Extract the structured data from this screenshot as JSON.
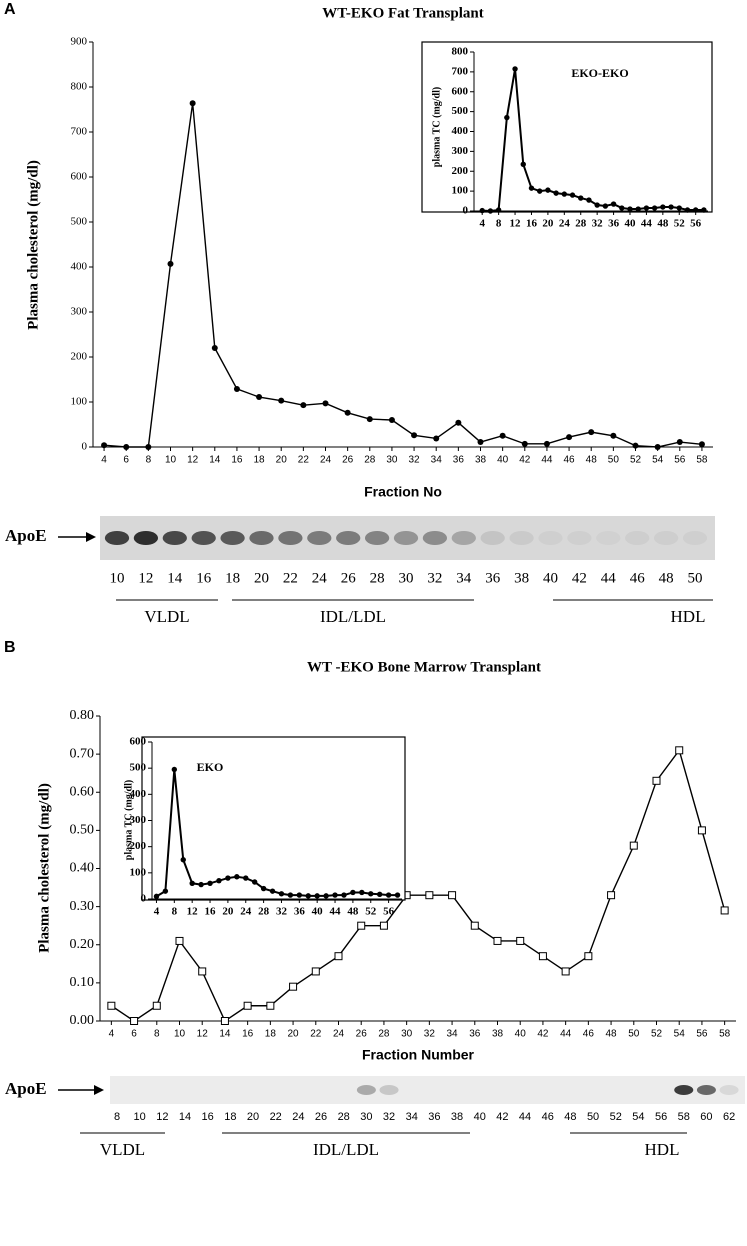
{
  "panel_labels": [
    "A",
    "B"
  ],
  "chart_data": [
    {
      "type": "line",
      "title": "WT-EKO Fat Transplant",
      "x_label": "Fraction No",
      "y_label": "Plasma cholesterol (mg/dl)",
      "marker": "circle",
      "color": "#000000",
      "x": [
        4,
        6,
        8,
        10,
        12,
        14,
        16,
        18,
        20,
        22,
        24,
        26,
        28,
        30,
        32,
        34,
        36,
        38,
        40,
        42,
        44,
        46,
        48,
        50,
        52,
        54,
        56,
        58
      ],
      "values": [
        4,
        0,
        0,
        407,
        764,
        220,
        129,
        111,
        103,
        93,
        97,
        76,
        62,
        60,
        26,
        19,
        54,
        11,
        25,
        7,
        7,
        22,
        33,
        25,
        3,
        0,
        11,
        6
      ],
      "xlim": [
        3,
        59
      ],
      "xticks": [
        4,
        6,
        8,
        10,
        12,
        14,
        16,
        18,
        20,
        22,
        24,
        26,
        28,
        30,
        32,
        34,
        36,
        38,
        40,
        42,
        44,
        46,
        48,
        50,
        52,
        54,
        56,
        58
      ],
      "ylim": [
        0,
        900
      ],
      "yticks": [
        0,
        100,
        200,
        300,
        400,
        500,
        600,
        700,
        800,
        900
      ],
      "grid": false
    },
    {
      "type": "line",
      "annotation": "EKO-EKO",
      "y_label": "plasma TC (mg/dl)",
      "marker": "circle",
      "color": "#000000",
      "x": [
        4,
        6,
        8,
        10,
        12,
        14,
        16,
        18,
        20,
        22,
        24,
        26,
        28,
        30,
        32,
        34,
        36,
        38,
        40,
        42,
        44,
        46,
        48,
        50,
        52,
        54,
        56,
        58
      ],
      "values": [
        2,
        0,
        5,
        470,
        715,
        235,
        115,
        100,
        105,
        90,
        85,
        80,
        65,
        55,
        30,
        25,
        35,
        15,
        10,
        10,
        15,
        15,
        20,
        20,
        15,
        5,
        5,
        5
      ],
      "xlim": [
        2,
        59
      ],
      "xticks": [
        4,
        8,
        12,
        16,
        20,
        24,
        28,
        32,
        36,
        40,
        44,
        48,
        52,
        56
      ],
      "ylim": [
        0,
        800
      ],
      "yticks": [
        0,
        100,
        200,
        300,
        400,
        500,
        600,
        700,
        800
      ],
      "grid": false
    },
    {
      "type": "line",
      "title": "WT -EKO Bone Marrow Transplant",
      "x_label": "Fraction Number",
      "y_label": "Plasma cholesterol (mg/dl)",
      "marker": "square",
      "color": "#000000",
      "x": [
        4,
        6,
        8,
        10,
        12,
        14,
        16,
        18,
        20,
        22,
        24,
        26,
        28,
        30,
        32,
        34,
        36,
        38,
        40,
        42,
        44,
        46,
        48,
        50,
        52,
        54,
        56,
        58
      ],
      "values": [
        0.04,
        0,
        0.04,
        0.21,
        0.13,
        0,
        0.04,
        0.04,
        0.09,
        0.13,
        0.17,
        0.25,
        0.25,
        0.33,
        0.33,
        0.33,
        0.25,
        0.21,
        0.21,
        0.17,
        0.13,
        0.17,
        0.33,
        0.46,
        0.63,
        0.71,
        0.5,
        0.29
      ],
      "xlim": [
        3,
        59
      ],
      "xticks": [
        4,
        6,
        8,
        10,
        12,
        14,
        16,
        18,
        20,
        22,
        24,
        26,
        28,
        30,
        32,
        34,
        36,
        38,
        40,
        42,
        44,
        46,
        48,
        50,
        52,
        54,
        56,
        58
      ],
      "ylim": [
        0,
        0.8
      ],
      "yticks": [
        {
          "value": 0,
          "label": "0.00"
        },
        {
          "value": 0.1,
          "label": "0.10"
        },
        {
          "value": 0.2,
          "label": "0.20"
        },
        {
          "value": 0.3,
          "label": "0.30"
        },
        {
          "value": 0.4,
          "label": "0.40"
        },
        {
          "value": 0.5,
          "label": "0.50"
        },
        {
          "value": 0.6,
          "label": "0.60"
        },
        {
          "value": 0.7,
          "label": "0.70"
        },
        {
          "value": 0.8,
          "label": "0.80"
        }
      ],
      "grid": false
    },
    {
      "type": "line",
      "annotation": "EKO",
      "y_label": "plasma TC (mg/dl)",
      "marker": "circle",
      "color": "#000000",
      "x": [
        4,
        6,
        8,
        10,
        12,
        14,
        16,
        18,
        20,
        22,
        24,
        26,
        28,
        30,
        32,
        34,
        36,
        38,
        40,
        42,
        44,
        46,
        48,
        50,
        52,
        54,
        56,
        58
      ],
      "values": [
        10,
        30,
        495,
        150,
        60,
        55,
        60,
        70,
        80,
        85,
        80,
        65,
        40,
        30,
        20,
        15,
        15,
        12,
        12,
        12,
        15,
        15,
        25,
        25,
        20,
        18,
        15,
        15
      ],
      "xlim": [
        3,
        59
      ],
      "xticks": [
        4,
        8,
        12,
        16,
        20,
        24,
        28,
        32,
        36,
        40,
        44,
        48,
        52,
        56
      ],
      "ylim": [
        0,
        600
      ],
      "yticks": [
        0,
        100,
        200,
        300,
        400,
        500,
        600
      ],
      "grid": false
    }
  ],
  "blots": [
    {
      "label": "ApoE",
      "lanes": [
        "10",
        "12",
        "14",
        "16",
        "18",
        "20",
        "22",
        "24",
        "26",
        "28",
        "30",
        "32",
        "34",
        "36",
        "38",
        "40",
        "42",
        "44",
        "46",
        "48",
        "50"
      ],
      "groups": [
        "VLDL",
        "IDL/LDL",
        "HDL"
      ]
    },
    {
      "label": "ApoE",
      "lanes": [
        "8",
        "10",
        "12",
        "14",
        "16",
        "18",
        "20",
        "22",
        "24",
        "26",
        "28",
        "30",
        "32",
        "34",
        "36",
        "38",
        "40",
        "42",
        "44",
        "46",
        "48",
        "50",
        "52",
        "54",
        "56",
        "58",
        "60",
        "62"
      ],
      "groups": [
        "VLDL",
        "IDL/LDL",
        "HDL"
      ]
    }
  ]
}
